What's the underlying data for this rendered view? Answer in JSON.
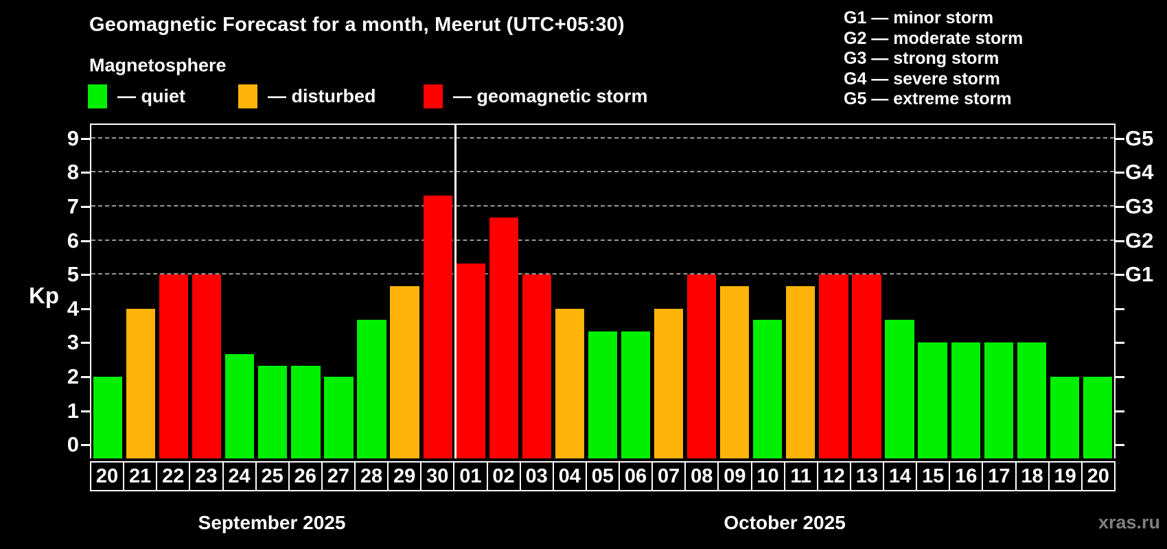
{
  "title": "Geomagnetic Forecast for a month, Meerut (UTC+05:30)",
  "subtitle": "Magnetosphere",
  "watermark": "xras.ru",
  "colors": {
    "quiet": "#00f000",
    "disturbed": "#ffb40a",
    "storm": "#ff0000",
    "grid": "#9a9a9a",
    "axis": "#ffffff",
    "watermark": "#7f7f7f"
  },
  "legend": [
    {
      "label": "— quiet",
      "status": "quiet"
    },
    {
      "label": "— disturbed",
      "status": "disturbed"
    },
    {
      "label": "— geomagnetic storm",
      "status": "storm"
    }
  ],
  "g_legend": [
    "G1 — minor storm",
    "G2 — moderate storm",
    "G3 — strong storm",
    "G4 — severe storm",
    "G5 — extreme storm"
  ],
  "chart_data": {
    "type": "bar",
    "ylabel": "Kp",
    "ylim": [
      -0.4,
      9.4
    ],
    "yticks": [
      0,
      1,
      2,
      3,
      4,
      5,
      6,
      7,
      8,
      9
    ],
    "gridlines_at": [
      5,
      6,
      7,
      8,
      9
    ],
    "right_axis_labels": [
      {
        "label": "G1",
        "kp": 5
      },
      {
        "label": "G2",
        "kp": 6
      },
      {
        "label": "G3",
        "kp": 7
      },
      {
        "label": "G4",
        "kp": 8
      },
      {
        "label": "G5",
        "kp": 9
      }
    ],
    "months": [
      {
        "label": "September 2025",
        "days": 11
      },
      {
        "label": "October 2025",
        "days": 20
      }
    ],
    "bars": [
      {
        "day": "20",
        "kp": 2.0,
        "status": "quiet"
      },
      {
        "day": "21",
        "kp": 4.0,
        "status": "disturbed"
      },
      {
        "day": "22",
        "kp": 5.0,
        "status": "storm"
      },
      {
        "day": "23",
        "kp": 5.0,
        "status": "storm"
      },
      {
        "day": "24",
        "kp": 2.67,
        "status": "quiet"
      },
      {
        "day": "25",
        "kp": 2.33,
        "status": "quiet"
      },
      {
        "day": "26",
        "kp": 2.33,
        "status": "quiet"
      },
      {
        "day": "27",
        "kp": 2.0,
        "status": "quiet"
      },
      {
        "day": "28",
        "kp": 3.67,
        "status": "quiet"
      },
      {
        "day": "29",
        "kp": 4.67,
        "status": "disturbed"
      },
      {
        "day": "30",
        "kp": 7.33,
        "status": "storm"
      },
      {
        "day": "01",
        "kp": 5.33,
        "status": "storm"
      },
      {
        "day": "02",
        "kp": 6.67,
        "status": "storm"
      },
      {
        "day": "03",
        "kp": 5.0,
        "status": "storm"
      },
      {
        "day": "04",
        "kp": 4.0,
        "status": "disturbed"
      },
      {
        "day": "05",
        "kp": 3.33,
        "status": "quiet"
      },
      {
        "day": "06",
        "kp": 3.33,
        "status": "quiet"
      },
      {
        "day": "07",
        "kp": 4.0,
        "status": "disturbed"
      },
      {
        "day": "08",
        "kp": 5.0,
        "status": "storm"
      },
      {
        "day": "09",
        "kp": 4.67,
        "status": "disturbed"
      },
      {
        "day": "10",
        "kp": 3.67,
        "status": "quiet"
      },
      {
        "day": "11",
        "kp": 4.67,
        "status": "disturbed"
      },
      {
        "day": "12",
        "kp": 5.0,
        "status": "storm"
      },
      {
        "day": "13",
        "kp": 5.0,
        "status": "storm"
      },
      {
        "day": "14",
        "kp": 3.67,
        "status": "quiet"
      },
      {
        "day": "15",
        "kp": 3.0,
        "status": "quiet"
      },
      {
        "day": "16",
        "kp": 3.0,
        "status": "quiet"
      },
      {
        "day": "17",
        "kp": 3.0,
        "status": "quiet"
      },
      {
        "day": "18",
        "kp": 3.0,
        "status": "quiet"
      },
      {
        "day": "19",
        "kp": 2.0,
        "status": "quiet"
      },
      {
        "day": "20",
        "kp": 2.0,
        "status": "quiet"
      }
    ]
  }
}
